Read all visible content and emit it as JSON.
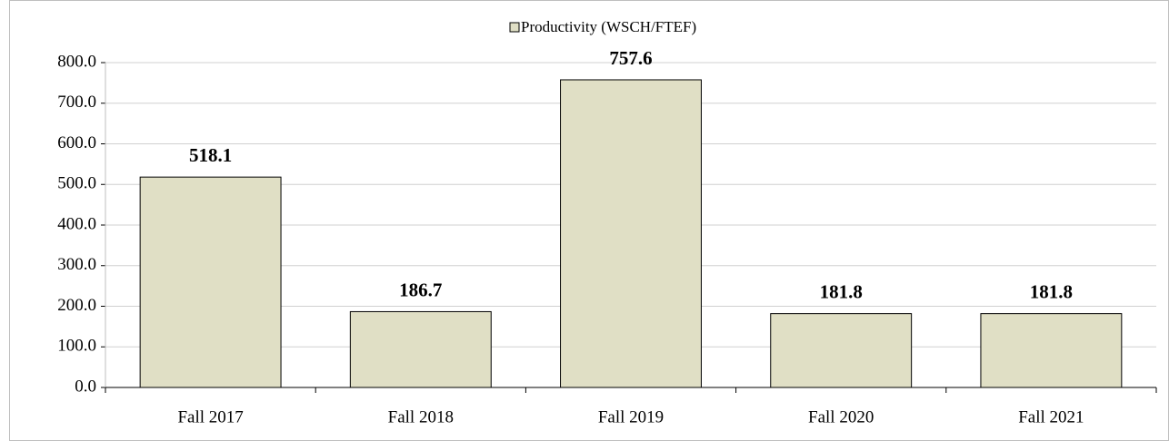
{
  "chart_data": {
    "type": "bar",
    "categories": [
      "Fall 2017",
      "Fall 2018",
      "Fall 2019",
      "Fall 2020",
      "Fall 2021"
    ],
    "series": [
      {
        "name": "Productivity (WSCH/FTEF)",
        "color": "#e0dfc5",
        "values": [
          518.1,
          186.7,
          757.6,
          181.8,
          181.8
        ]
      }
    ],
    "ylim": [
      0,
      800
    ],
    "yticks": [
      {
        "value": 0,
        "label": "0.0"
      },
      {
        "value": 100,
        "label": "100.0"
      },
      {
        "value": 200,
        "label": "200.0"
      },
      {
        "value": 300,
        "label": "300.0"
      },
      {
        "value": 400,
        "label": "400.0"
      },
      {
        "value": 500,
        "label": "500.0"
      },
      {
        "value": 600,
        "label": "600.0"
      },
      {
        "value": 700,
        "label": "700.0"
      },
      {
        "value": 800,
        "label": "800.0"
      }
    ],
    "grid": true,
    "legend": "top"
  }
}
